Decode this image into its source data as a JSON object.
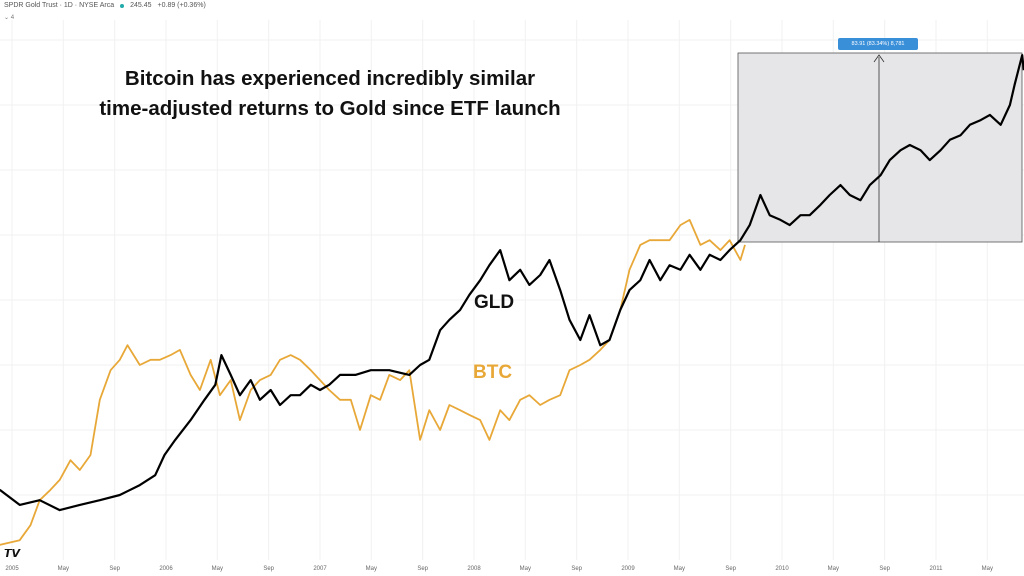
{
  "header": {
    "symbol": "SPDR Gold Trust · 1D · NYSE Arca",
    "price": "245.45",
    "change": "+0.89 (+0.36%)",
    "indicator_count": "4"
  },
  "annotation": {
    "title_line1": "Bitcoin has experienced incredibly similar",
    "title_line2": "time-adjusted returns to Gold since ETF launch",
    "measure_label": "83.91 (83.34%) 8,781"
  },
  "logo": "TV",
  "chart_data": {
    "type": "line",
    "title": "Bitcoin has experienced incredibly similar time-adjusted returns to Gold since ETF launch",
    "xlabel": "",
    "ylabel": "",
    "x_ticks": [
      "2005",
      "May",
      "Sep",
      "2006",
      "May",
      "Sep",
      "2007",
      "May",
      "Sep",
      "2008",
      "May",
      "Sep",
      "2009",
      "May",
      "Sep",
      "2010",
      "May",
      "Sep",
      "2011",
      "May"
    ],
    "xlim": [
      2004.92,
      2011.57
    ],
    "ylim": [
      0,
      100
    ],
    "grid": true,
    "legend": "inline labels",
    "series": [
      {
        "name": "GLD",
        "color": "#000000",
        "points": [
          [
            2004.92,
            13.5
          ],
          [
            2005.05,
            10.6
          ],
          [
            2005.18,
            11.5
          ],
          [
            2005.31,
            9.6
          ],
          [
            2005.44,
            10.6
          ],
          [
            2005.57,
            11.5
          ],
          [
            2005.7,
            12.5
          ],
          [
            2005.83,
            14.4
          ],
          [
            2005.93,
            16.3
          ],
          [
            2005.99,
            20.2
          ],
          [
            2006.06,
            23.1
          ],
          [
            2006.16,
            26.9
          ],
          [
            2006.25,
            30.8
          ],
          [
            2006.32,
            33.7
          ],
          [
            2006.36,
            39.4
          ],
          [
            2006.42,
            35.6
          ],
          [
            2006.48,
            31.7
          ],
          [
            2006.55,
            34.6
          ],
          [
            2006.61,
            30.8
          ],
          [
            2006.68,
            32.7
          ],
          [
            2006.74,
            29.8
          ],
          [
            2006.81,
            31.7
          ],
          [
            2006.87,
            31.7
          ],
          [
            2006.94,
            33.7
          ],
          [
            2007.0,
            32.7
          ],
          [
            2007.06,
            33.7
          ],
          [
            2007.13,
            35.6
          ],
          [
            2007.23,
            35.6
          ],
          [
            2007.33,
            36.5
          ],
          [
            2007.45,
            36.5
          ],
          [
            2007.58,
            35.6
          ],
          [
            2007.65,
            37.5
          ],
          [
            2007.71,
            38.5
          ],
          [
            2007.78,
            44.2
          ],
          [
            2007.84,
            46.2
          ],
          [
            2007.91,
            48.1
          ],
          [
            2007.97,
            51.0
          ],
          [
            2008.04,
            53.8
          ],
          [
            2008.1,
            56.7
          ],
          [
            2008.17,
            59.6
          ],
          [
            2008.23,
            53.8
          ],
          [
            2008.3,
            55.8
          ],
          [
            2008.36,
            52.9
          ],
          [
            2008.43,
            54.8
          ],
          [
            2008.49,
            57.7
          ],
          [
            2008.56,
            51.9
          ],
          [
            2008.62,
            46.2
          ],
          [
            2008.69,
            42.3
          ],
          [
            2008.75,
            47.1
          ],
          [
            2008.82,
            41.3
          ],
          [
            2008.88,
            42.3
          ],
          [
            2008.95,
            48.1
          ],
          [
            2009.01,
            51.9
          ],
          [
            2009.08,
            53.8
          ],
          [
            2009.14,
            57.7
          ],
          [
            2009.21,
            53.8
          ],
          [
            2009.27,
            56.7
          ],
          [
            2009.34,
            55.8
          ],
          [
            2009.4,
            58.7
          ],
          [
            2009.47,
            55.8
          ],
          [
            2009.53,
            58.7
          ],
          [
            2009.6,
            57.7
          ],
          [
            2009.66,
            59.6
          ],
          [
            2009.73,
            61.5
          ],
          [
            2009.79,
            64.4
          ],
          [
            2009.86,
            70.2
          ],
          [
            2009.92,
            66.3
          ],
          [
            2009.99,
            65.4
          ],
          [
            2010.05,
            64.4
          ],
          [
            2010.12,
            66.3
          ],
          [
            2010.18,
            66.3
          ],
          [
            2010.25,
            68.3
          ],
          [
            2010.31,
            70.2
          ],
          [
            2010.38,
            72.1
          ],
          [
            2010.44,
            70.2
          ],
          [
            2010.51,
            69.2
          ],
          [
            2010.57,
            72.1
          ],
          [
            2010.64,
            74.0
          ],
          [
            2010.7,
            76.9
          ],
          [
            2010.77,
            78.8
          ],
          [
            2010.83,
            79.8
          ],
          [
            2010.9,
            78.8
          ],
          [
            2010.96,
            76.9
          ],
          [
            2011.03,
            78.8
          ],
          [
            2011.09,
            80.8
          ],
          [
            2011.16,
            81.7
          ],
          [
            2011.22,
            83.7
          ],
          [
            2011.29,
            84.6
          ],
          [
            2011.35,
            85.6
          ],
          [
            2011.42,
            83.7
          ],
          [
            2011.48,
            87.5
          ],
          [
            2011.51,
            91.3
          ],
          [
            2011.56,
            97.1
          ],
          [
            2011.57,
            94.2
          ]
        ]
      },
      {
        "name": "BTC",
        "color": "#e8a838",
        "points": [
          [
            2004.92,
            2.9
          ],
          [
            2005.05,
            3.8
          ],
          [
            2005.12,
            6.7
          ],
          [
            2005.18,
            11.5
          ],
          [
            2005.25,
            13.5
          ],
          [
            2005.31,
            15.4
          ],
          [
            2005.38,
            19.2
          ],
          [
            2005.44,
            17.3
          ],
          [
            2005.51,
            20.2
          ],
          [
            2005.57,
            30.8
          ],
          [
            2005.64,
            36.5
          ],
          [
            2005.7,
            38.5
          ],
          [
            2005.75,
            41.3
          ],
          [
            2005.83,
            37.5
          ],
          [
            2005.9,
            38.5
          ],
          [
            2005.96,
            38.5
          ],
          [
            2006.03,
            39.4
          ],
          [
            2006.09,
            40.4
          ],
          [
            2006.16,
            35.6
          ],
          [
            2006.22,
            32.7
          ],
          [
            2006.29,
            38.5
          ],
          [
            2006.35,
            31.7
          ],
          [
            2006.42,
            34.6
          ],
          [
            2006.48,
            26.9
          ],
          [
            2006.55,
            32.7
          ],
          [
            2006.61,
            34.6
          ],
          [
            2006.68,
            35.6
          ],
          [
            2006.74,
            38.5
          ],
          [
            2006.81,
            39.4
          ],
          [
            2006.87,
            38.5
          ],
          [
            2006.94,
            36.5
          ],
          [
            2007.0,
            34.6
          ],
          [
            2007.06,
            32.7
          ],
          [
            2007.13,
            30.8
          ],
          [
            2007.2,
            30.8
          ],
          [
            2007.26,
            25.0
          ],
          [
            2007.33,
            31.7
          ],
          [
            2007.39,
            30.8
          ],
          [
            2007.45,
            35.6
          ],
          [
            2007.52,
            34.6
          ],
          [
            2007.58,
            36.5
          ],
          [
            2007.65,
            23.1
          ],
          [
            2007.71,
            28.8
          ],
          [
            2007.78,
            25.0
          ],
          [
            2007.84,
            29.8
          ],
          [
            2007.91,
            28.8
          ],
          [
            2007.97,
            27.9
          ],
          [
            2008.04,
            26.9
          ],
          [
            2008.1,
            23.1
          ],
          [
            2008.17,
            28.8
          ],
          [
            2008.23,
            26.9
          ],
          [
            2008.3,
            30.8
          ],
          [
            2008.36,
            31.7
          ],
          [
            2008.43,
            29.8
          ],
          [
            2008.49,
            30.8
          ],
          [
            2008.56,
            31.7
          ],
          [
            2008.62,
            36.5
          ],
          [
            2008.69,
            37.5
          ],
          [
            2008.75,
            38.5
          ],
          [
            2008.82,
            40.4
          ],
          [
            2008.88,
            42.3
          ],
          [
            2008.95,
            48.1
          ],
          [
            2009.01,
            55.8
          ],
          [
            2009.08,
            60.6
          ],
          [
            2009.14,
            61.5
          ],
          [
            2009.21,
            61.5
          ],
          [
            2009.27,
            61.5
          ],
          [
            2009.34,
            64.4
          ],
          [
            2009.4,
            65.4
          ],
          [
            2009.47,
            60.6
          ],
          [
            2009.53,
            61.5
          ],
          [
            2009.6,
            59.6
          ],
          [
            2009.66,
            61.5
          ],
          [
            2009.73,
            57.7
          ],
          [
            2009.76,
            60.6
          ]
        ]
      }
    ]
  }
}
